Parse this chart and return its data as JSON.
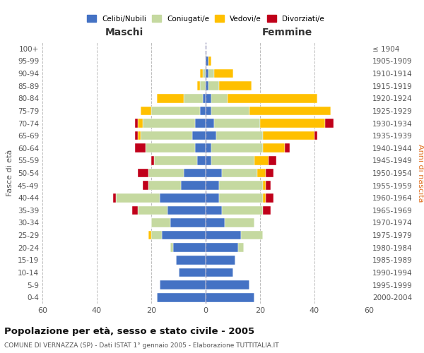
{
  "age_groups": [
    "100+",
    "95-99",
    "90-94",
    "85-89",
    "80-84",
    "75-79",
    "70-74",
    "65-69",
    "60-64",
    "55-59",
    "50-54",
    "45-49",
    "40-44",
    "35-39",
    "30-34",
    "25-29",
    "20-24",
    "15-19",
    "10-14",
    "5-9",
    "0-4"
  ],
  "birth_years": [
    "≤ 1904",
    "1905-1909",
    "1910-1914",
    "1915-1919",
    "1920-1924",
    "1925-1929",
    "1930-1934",
    "1935-1939",
    "1940-1944",
    "1945-1949",
    "1950-1954",
    "1955-1959",
    "1960-1964",
    "1965-1969",
    "1970-1974",
    "1975-1979",
    "1980-1984",
    "1985-1989",
    "1990-1994",
    "1995-1999",
    "2000-2004"
  ],
  "maschi": {
    "celibi": [
      0,
      0,
      0,
      0,
      1,
      2,
      4,
      5,
      4,
      3,
      8,
      9,
      17,
      14,
      13,
      16,
      12,
      11,
      10,
      17,
      18
    ],
    "coniugati": [
      0,
      0,
      1,
      2,
      7,
      18,
      19,
      19,
      18,
      16,
      13,
      12,
      16,
      11,
      7,
      4,
      1,
      0,
      0,
      0,
      0
    ],
    "vedovi": [
      0,
      0,
      1,
      1,
      10,
      4,
      2,
      1,
      0,
      0,
      0,
      0,
      0,
      0,
      0,
      1,
      0,
      0,
      0,
      0,
      0
    ],
    "divorziati": [
      0,
      0,
      0,
      0,
      0,
      0,
      1,
      1,
      4,
      1,
      4,
      2,
      1,
      2,
      0,
      0,
      0,
      0,
      0,
      0,
      0
    ]
  },
  "femmine": {
    "nubili": [
      0,
      1,
      1,
      1,
      2,
      2,
      3,
      4,
      2,
      2,
      6,
      5,
      5,
      6,
      7,
      13,
      12,
      11,
      10,
      16,
      18
    ],
    "coniugate": [
      0,
      0,
      2,
      4,
      6,
      14,
      17,
      17,
      19,
      16,
      13,
      16,
      16,
      15,
      11,
      8,
      2,
      0,
      0,
      0,
      0
    ],
    "vedove": [
      0,
      1,
      7,
      12,
      33,
      30,
      24,
      19,
      8,
      5,
      3,
      1,
      1,
      0,
      0,
      0,
      0,
      0,
      0,
      0,
      0
    ],
    "divorziate": [
      0,
      0,
      0,
      0,
      0,
      0,
      3,
      1,
      2,
      3,
      3,
      2,
      3,
      3,
      0,
      0,
      0,
      0,
      0,
      0,
      0
    ]
  },
  "colors": {
    "celibi_nubili": "#4472c4",
    "coniugati": "#c5d9a0",
    "vedovi": "#ffc000",
    "divorziati": "#c0001a"
  },
  "xlim": 60,
  "title": "Popolazione per età, sesso e stato civile - 2005",
  "subtitle": "COMUNE DI VERNAZZA (SP) - Dati ISTAT 1° gennaio 2005 - Elaborazione TUTTITALIA.IT",
  "ylabel_left": "Fasce di età",
  "ylabel_right": "Anni di nascita",
  "xlabel_left": "Maschi",
  "xlabel_right": "Femmine"
}
